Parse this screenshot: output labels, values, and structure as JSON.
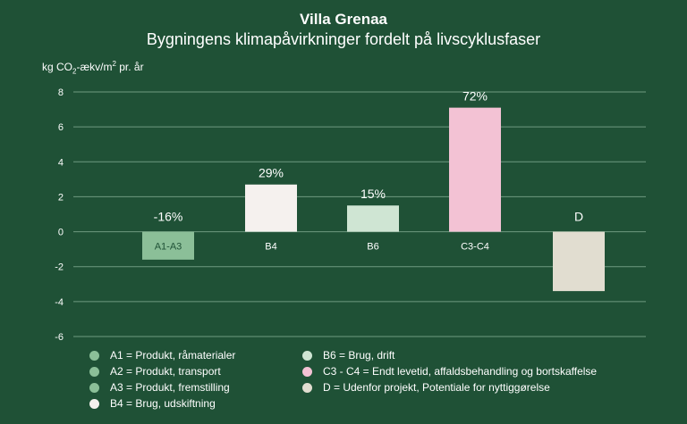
{
  "chart_data": {
    "type": "bar",
    "title": "Villa Grenaa",
    "subtitle": "Bygningens klimapåvirkninger fordelt på livscyklusfaser",
    "ylabel": {
      "prefix": "kg CO",
      "sub": "2",
      "mid": "-ækv/m",
      "sup": "2",
      "suffix": " pr. år"
    },
    "ylim": [
      -6,
      8
    ],
    "yticks": [
      8,
      6,
      4,
      2,
      0,
      -2,
      -4,
      -6
    ],
    "grid": true,
    "bars": [
      {
        "category": "A1-A3",
        "value": -1.6,
        "pct_label": "-16%",
        "color": "#8bbf98"
      },
      {
        "category": "B4",
        "value": 2.7,
        "pct_label": "29%",
        "color": "#f5f1ee"
      },
      {
        "category": "B6",
        "value": 1.5,
        "pct_label": "15%",
        "color": "#cfe5d3"
      },
      {
        "category": "C3-C4",
        "value": 7.1,
        "pct_label": "72%",
        "color": "#f3c2d4"
      },
      {
        "category": "D",
        "value": -3.4,
        "pct_label": "D",
        "color": "#e1ddd0"
      }
    ],
    "legend": [
      {
        "text": "A1 = Produkt, råmaterialer",
        "color": "#8bbf98"
      },
      {
        "text": "A2 = Produkt, transport",
        "color": "#8bbf98"
      },
      {
        "text": "A3 = Produkt, fremstilling",
        "color": "#8bbf98"
      },
      {
        "text": "B4 = Brug, udskiftning",
        "color": "#f5f1ee"
      },
      {
        "text": "B6 = Brug, drift",
        "color": "#cfe5d3"
      },
      {
        "text": "C3 - C4 = Endt levetid, affaldsbehandling og bortskaffelse",
        "color": "#f3c2d4"
      },
      {
        "text": "D = Udenfor projekt, Potentiale for nyttiggørelse",
        "color": "#e1ddd0"
      }
    ]
  }
}
